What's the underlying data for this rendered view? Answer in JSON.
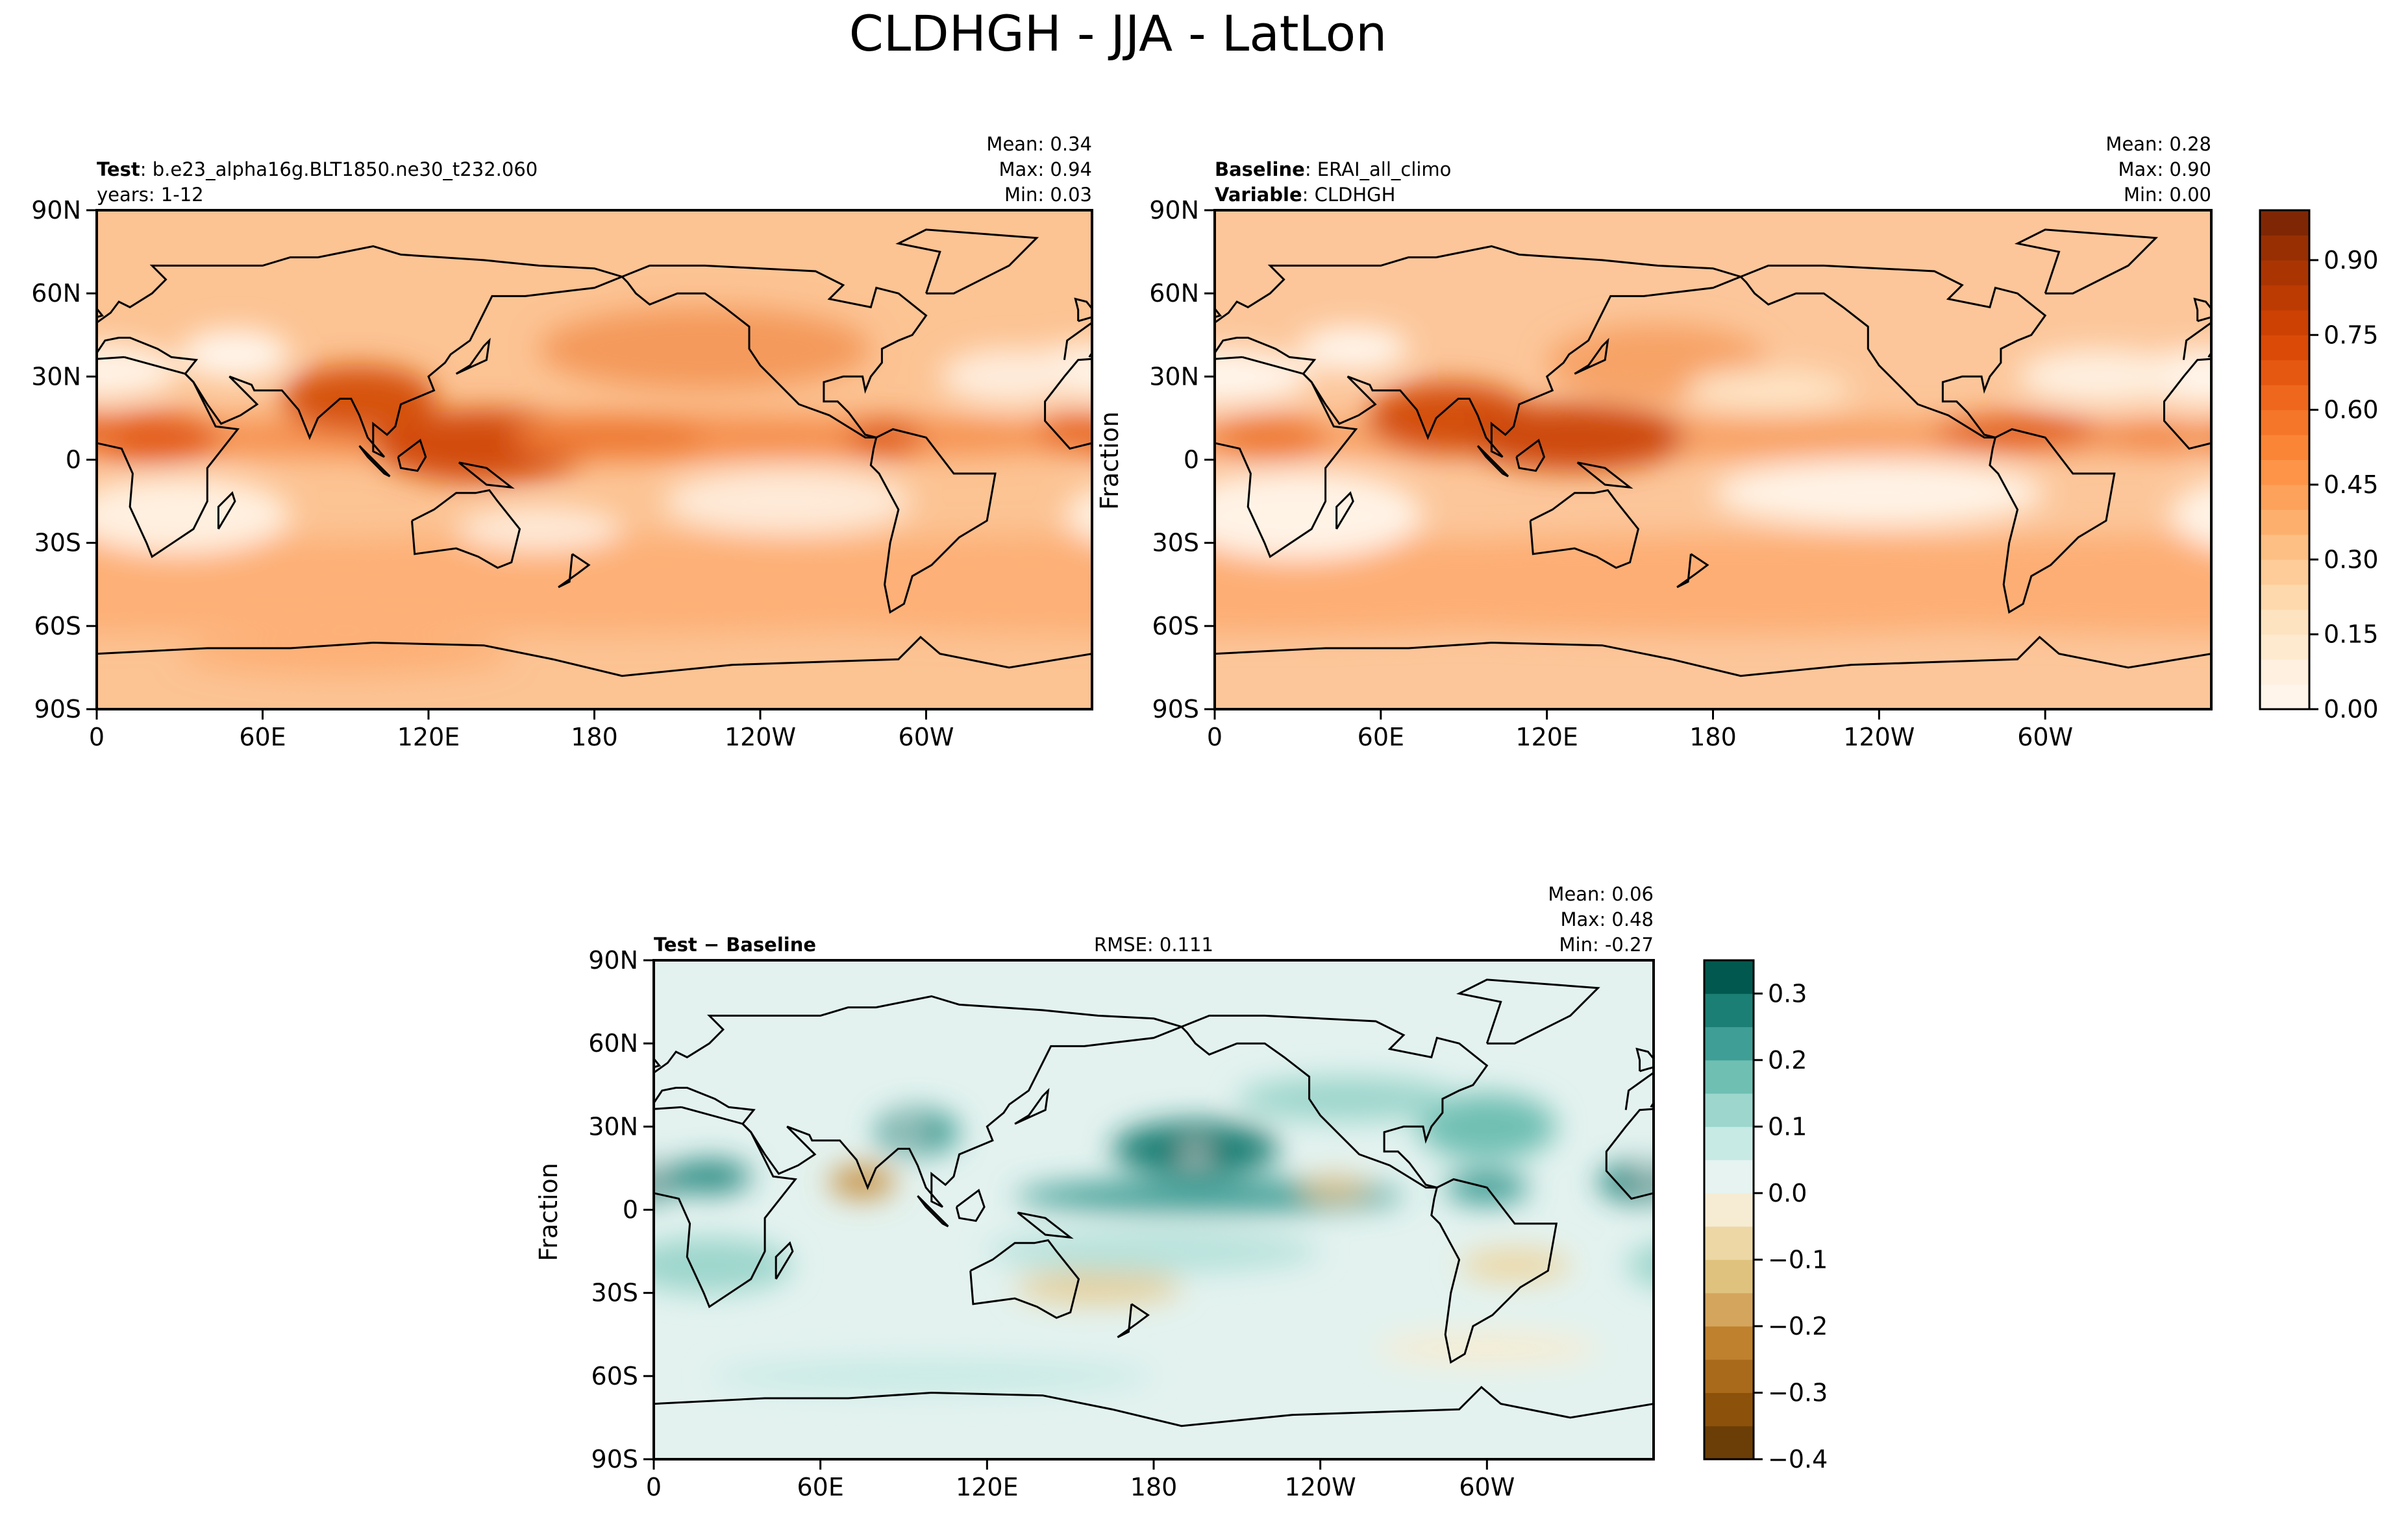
{
  "title": "CLDHGH - JJA - LatLon",
  "chart_data": [
    {
      "type": "contour-map",
      "header_lines": [
        {
          "label": "Test",
          "text": ": b.e23_alpha16g.BLT1850.ne30_t232.060"
        },
        {
          "text": "years: 1-12"
        }
      ],
      "stats": [
        "Mean:  0.34",
        "Max:  0.94",
        "Min:  0.03"
      ],
      "xlim": [
        0,
        360
      ],
      "ylim": [
        -90,
        90
      ],
      "xticks": [
        0,
        {
          "value": 60,
          "label": "60E"
        },
        {
          "value": 120,
          "label": "120E"
        },
        180,
        {
          "value": 240,
          "label": "120W"
        },
        {
          "value": 300,
          "label": "60W"
        }
      ],
      "yticks": [
        {
          "value": -90,
          "label": "90S"
        },
        {
          "value": -60,
          "label": "60S"
        },
        {
          "value": -30,
          "label": "30S"
        },
        0,
        {
          "value": 30,
          "label": "30N"
        },
        {
          "value": 60,
          "label": "60N"
        },
        {
          "value": 90,
          "label": "90N"
        }
      ]
    },
    {
      "type": "contour-map",
      "header_lines": [
        {
          "label": "Baseline",
          "text": ": ERAI_all_climo"
        },
        {
          "label": "Variable",
          "text": ": CLDHGH"
        }
      ],
      "stats": [
        "Mean:  0.28",
        "Max:  0.90",
        "Min:  0.00"
      ],
      "ylabel": "Fraction",
      "xlim": [
        0,
        360
      ],
      "ylim": [
        -90,
        90
      ],
      "xticks": [
        0,
        {
          "value": 60,
          "label": "60E"
        },
        {
          "value": 120,
          "label": "120E"
        },
        180,
        {
          "value": 240,
          "label": "120W"
        },
        {
          "value": 300,
          "label": "60W"
        }
      ],
      "yticks": [
        {
          "value": -90,
          "label": "90S"
        },
        {
          "value": -60,
          "label": "60S"
        },
        {
          "value": -30,
          "label": "30S"
        },
        0,
        {
          "value": 30,
          "label": "30N"
        },
        {
          "value": 60,
          "label": "60N"
        },
        {
          "value": 90,
          "label": "90N"
        }
      ],
      "colorbar": {
        "lim": [
          0,
          1
        ],
        "ticks": [
          {
            "value": 0,
            "label": "0.00"
          },
          0.15,
          {
            "value": 0.3,
            "label": "0.30"
          },
          0.45,
          {
            "value": 0.6,
            "label": "0.60"
          },
          0.75,
          {
            "value": 0.9,
            "label": "0.90"
          }
        ],
        "colors": [
          "#fff5eb",
          "#fff0e0",
          "#feeacf",
          "#fee3c0",
          "#fdd9ad",
          "#fdcc98",
          "#fdbf83",
          "#fdb06d",
          "#fda25a",
          "#fd9447",
          "#fa8536",
          "#f57628",
          "#ee671c",
          "#e55812",
          "#db4a07",
          "#cd4102",
          "#bc3b02",
          "#aa3503",
          "#972f03",
          "#7f2704"
        ]
      }
    },
    {
      "type": "contour-map",
      "header_lines": [
        {
          "label": "Test − Baseline"
        }
      ],
      "center_text": "RMSE: 0.111",
      "stats": [
        "Mean:  0.06",
        "Max:  0.48",
        "Min: -0.27"
      ],
      "ylabel": "Fraction",
      "xlim": [
        0,
        360
      ],
      "ylim": [
        -90,
        90
      ],
      "xticks": [
        0,
        {
          "value": 60,
          "label": "60E"
        },
        {
          "value": 120,
          "label": "120E"
        },
        180,
        {
          "value": 240,
          "label": "120W"
        },
        {
          "value": 300,
          "label": "60W"
        }
      ],
      "yticks": [
        {
          "value": -90,
          "label": "90S"
        },
        {
          "value": -60,
          "label": "60S"
        },
        {
          "value": -30,
          "label": "30S"
        },
        0,
        {
          "value": 30,
          "label": "30N"
        },
        {
          "value": 60,
          "label": "60N"
        },
        {
          "value": 90,
          "label": "90N"
        }
      ],
      "colorbar": {
        "lim": [
          -0.4,
          0.35
        ],
        "ticks": [
          {
            "value": -0.4,
            "label": "−0.4"
          },
          {
            "value": -0.3,
            "label": "−0.3"
          },
          {
            "value": -0.2,
            "label": "−0.2"
          },
          {
            "value": -0.1,
            "label": "−0.1"
          },
          {
            "value": 0,
            "label": "0.0"
          },
          0.1,
          0.2,
          0.3
        ],
        "colors": [
          "#6b3e07",
          "#8c510a",
          "#a96a1c",
          "#bf812d",
          "#d4a55d",
          "#dfc27d",
          "#ecd7a5",
          "#f6ecd3",
          "#e6f3f1",
          "#c7eae5",
          "#9cd6cc",
          "#6fbfb3",
          "#3f9e95",
          "#1c7f75",
          "#01584f"
        ]
      }
    }
  ]
}
